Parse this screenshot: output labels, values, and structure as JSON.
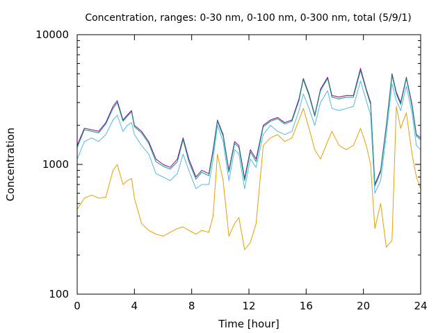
{
  "chart_data": {
    "type": "line",
    "title": "Concentration, ranges: 0-30 nm, 0-100 nm, 0-300 nm, total (5/9/1)",
    "xlabel": "Time [hour]",
    "ylabel": "Concentration",
    "xlim": [
      0,
      24
    ],
    "ylim": [
      100,
      10000
    ],
    "yscale": "log",
    "xticks": [
      0,
      4,
      8,
      12,
      16,
      20,
      24
    ],
    "xtick_labels": [
      "0",
      "4",
      "8",
      "12",
      "16",
      "20",
      "24"
    ],
    "yticks": [
      100,
      1000,
      10000
    ],
    "ytick_labels": [
      "100",
      "1000",
      "10000"
    ],
    "grid": false,
    "x": [
      0,
      0.5,
      1,
      1.5,
      2,
      2.5,
      2.8,
      3.2,
      3.5,
      3.8,
      4,
      4.5,
      5,
      5.5,
      6,
      6.5,
      7,
      7.4,
      7.8,
      8.3,
      8.7,
      9.2,
      9.5,
      9.8,
      10.2,
      10.6,
      11,
      11.3,
      11.7,
      12.1,
      12.5,
      13,
      13.5,
      14,
      14.5,
      15,
      15.5,
      15.8,
      16.2,
      16.6,
      17,
      17.5,
      17.8,
      18.3,
      18.8,
      19.3,
      19.8,
      20.2,
      20.5,
      20.8,
      21.2,
      21.6,
      22,
      22.3,
      22.6,
      23,
      23.4,
      23.7,
      24
    ],
    "series": [
      {
        "color": "#8a0099",
        "values": [
          1400,
          1900,
          1850,
          1800,
          2100,
          2800,
          3100,
          2200,
          2400,
          2600,
          2000,
          1800,
          1500,
          1100,
          1000,
          950,
          1100,
          1600,
          1100,
          800,
          900,
          850,
          1300,
          2200,
          1700,
          900,
          1500,
          1400,
          780,
          1300,
          1100,
          2000,
          2200,
          2300,
          2100,
          2200,
          3200,
          4600,
          3500,
          2400,
          3800,
          4700,
          3400,
          3300,
          3400,
          3400,
          5500,
          3800,
          3000,
          700,
          900,
          2000,
          5000,
          3600,
          3000,
          4700,
          2900,
          1700,
          1600
        ]
      },
      {
        "color": "#009e73",
        "values": [
          1350,
          1850,
          1800,
          1750,
          2050,
          2700,
          3000,
          2150,
          2350,
          2550,
          1950,
          1750,
          1450,
          1050,
          970,
          920,
          1050,
          1550,
          1050,
          770,
          870,
          820,
          1250,
          2150,
          1650,
          870,
          1450,
          1350,
          750,
          1250,
          1050,
          1950,
          2150,
          2250,
          2050,
          2150,
          3100,
          4500,
          3400,
          2350,
          3700,
          4600,
          3300,
          3200,
          3300,
          3300,
          5300,
          3700,
          2900,
          680,
          870,
          1950,
          4850,
          3500,
          2900,
          4600,
          2800,
          1650,
          1550
        ]
      },
      {
        "color": "#56b4e9",
        "values": [
          1100,
          1500,
          1600,
          1500,
          1700,
          2200,
          2400,
          1800,
          2000,
          2100,
          1700,
          1400,
          1200,
          850,
          800,
          750,
          850,
          1200,
          900,
          650,
          700,
          700,
          1100,
          2000,
          1500,
          750,
          1300,
          1200,
          650,
          1100,
          950,
          1700,
          2000,
          1800,
          1700,
          1800,
          2600,
          3500,
          2700,
          2000,
          3000,
          3700,
          2700,
          2600,
          2700,
          2800,
          4400,
          3100,
          2400,
          600,
          750,
          1700,
          4200,
          3100,
          2600,
          4000,
          2500,
          1400,
          1300
        ]
      },
      {
        "color": "#e69f00",
        "values": [
          450,
          550,
          580,
          550,
          560,
          900,
          1000,
          700,
          750,
          780,
          550,
          350,
          310,
          290,
          280,
          300,
          320,
          330,
          310,
          290,
          310,
          300,
          400,
          1200,
          750,
          280,
          350,
          390,
          220,
          250,
          350,
          1400,
          1600,
          1700,
          1500,
          1600,
          2200,
          2700,
          1900,
          1300,
          1100,
          1500,
          1800,
          1400,
          1300,
          1400,
          1900,
          1400,
          1000,
          320,
          500,
          230,
          260,
          2800,
          1900,
          2500,
          1200,
          800,
          650
        ]
      }
    ]
  }
}
